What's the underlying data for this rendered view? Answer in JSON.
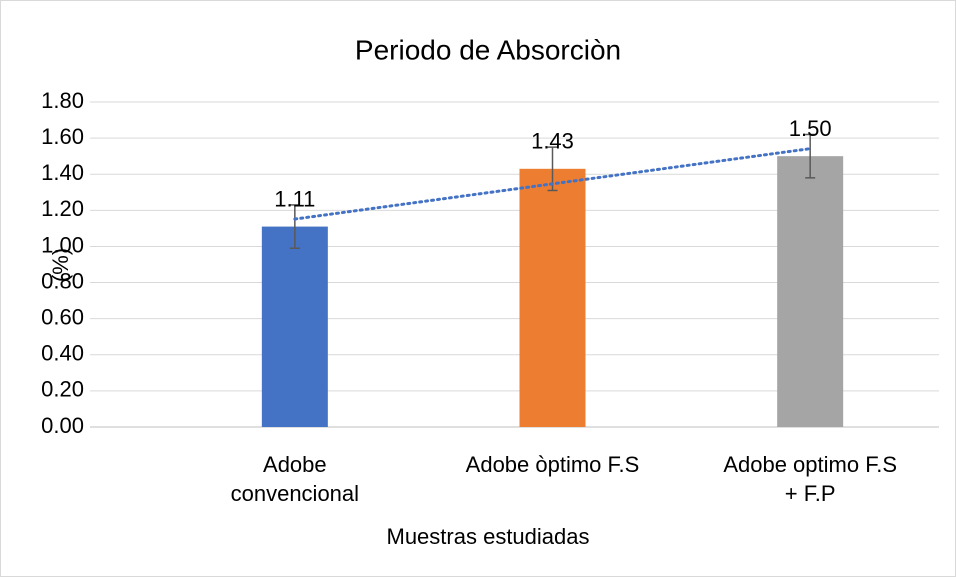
{
  "chart_data": {
    "type": "bar",
    "title": "Periodo de Absorciòn",
    "x_label": "Muestras estudiadas",
    "y_label": "(%)",
    "categories": [
      [
        "Adobe",
        "convencional"
      ],
      [
        "Adobe òptimo F.S"
      ],
      [
        "Adobe optimo F.S",
        "+ F.P"
      ]
    ],
    "values": [
      1.11,
      1.43,
      1.5
    ],
    "value_labels": [
      "1.11",
      "1.43",
      "1.50"
    ],
    "errors": [
      0.12,
      0.12,
      0.12
    ],
    "colors": [
      "#4472c4",
      "#ed7d31",
      "#a5a5a5"
    ],
    "trendline": {
      "kind": "linear",
      "color": "#4472c4"
    },
    "ylim": [
      0,
      1.8
    ],
    "yticks": [
      {
        "value": 0,
        "label": "0.00"
      },
      {
        "value": 0.2,
        "label": "0.20"
      },
      {
        "value": 0.4,
        "label": "0.40"
      },
      {
        "value": 0.6,
        "label": "0.60"
      },
      {
        "value": 0.8,
        "label": "0.80"
      },
      {
        "value": 1,
        "label": "1.00"
      },
      {
        "value": 1.2,
        "label": "1.20"
      },
      {
        "value": 1.4,
        "label": "1.40"
      },
      {
        "value": 1.6,
        "label": "1.60"
      },
      {
        "value": 1.8,
        "label": "1.80"
      }
    ],
    "grid": true
  }
}
